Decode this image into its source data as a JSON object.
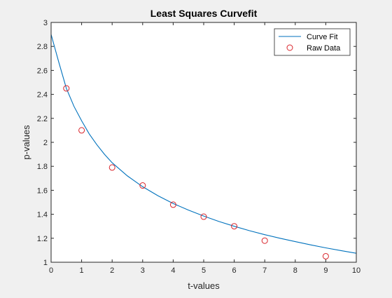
{
  "chart_data": {
    "type": "line",
    "title": "Least Squares Curvefit",
    "xlabel": "t-values",
    "ylabel": "p-values",
    "xlim": [
      0,
      10
    ],
    "ylim": [
      1,
      3
    ],
    "xticks": [
      "0",
      "1",
      "2",
      "3",
      "4",
      "5",
      "6",
      "7",
      "8",
      "9",
      "10"
    ],
    "yticks": [
      "1",
      "1.2",
      "1.4",
      "1.6",
      "1.8",
      "2",
      "2.2",
      "2.4",
      "2.6",
      "2.8",
      "3"
    ],
    "grid": false,
    "legend_location": "top-right",
    "series": [
      {
        "name": "Curve Fit",
        "kind": "line",
        "color": "#0072bd",
        "x": [
          0,
          0.25,
          0.5,
          0.75,
          1,
          1.25,
          1.5,
          1.75,
          2,
          2.5,
          3,
          3.5,
          4,
          4.5,
          5,
          5.5,
          6,
          6.5,
          7,
          7.5,
          8,
          8.5,
          9,
          9.5,
          10
        ],
        "y": [
          2.9,
          2.67,
          2.45,
          2.3,
          2.18,
          2.07,
          1.98,
          1.9,
          1.83,
          1.72,
          1.63,
          1.555,
          1.49,
          1.435,
          1.385,
          1.34,
          1.3,
          1.263,
          1.23,
          1.2,
          1.172,
          1.145,
          1.12,
          1.097,
          1.075
        ]
      },
      {
        "name": "Raw Data",
        "kind": "marker",
        "color": "#d9232a",
        "x": [
          0.5,
          1,
          2,
          3,
          4,
          5,
          6,
          7,
          9
        ],
        "y": [
          2.45,
          2.1,
          1.79,
          1.64,
          1.48,
          1.38,
          1.3,
          1.18,
          1.05
        ]
      }
    ]
  }
}
